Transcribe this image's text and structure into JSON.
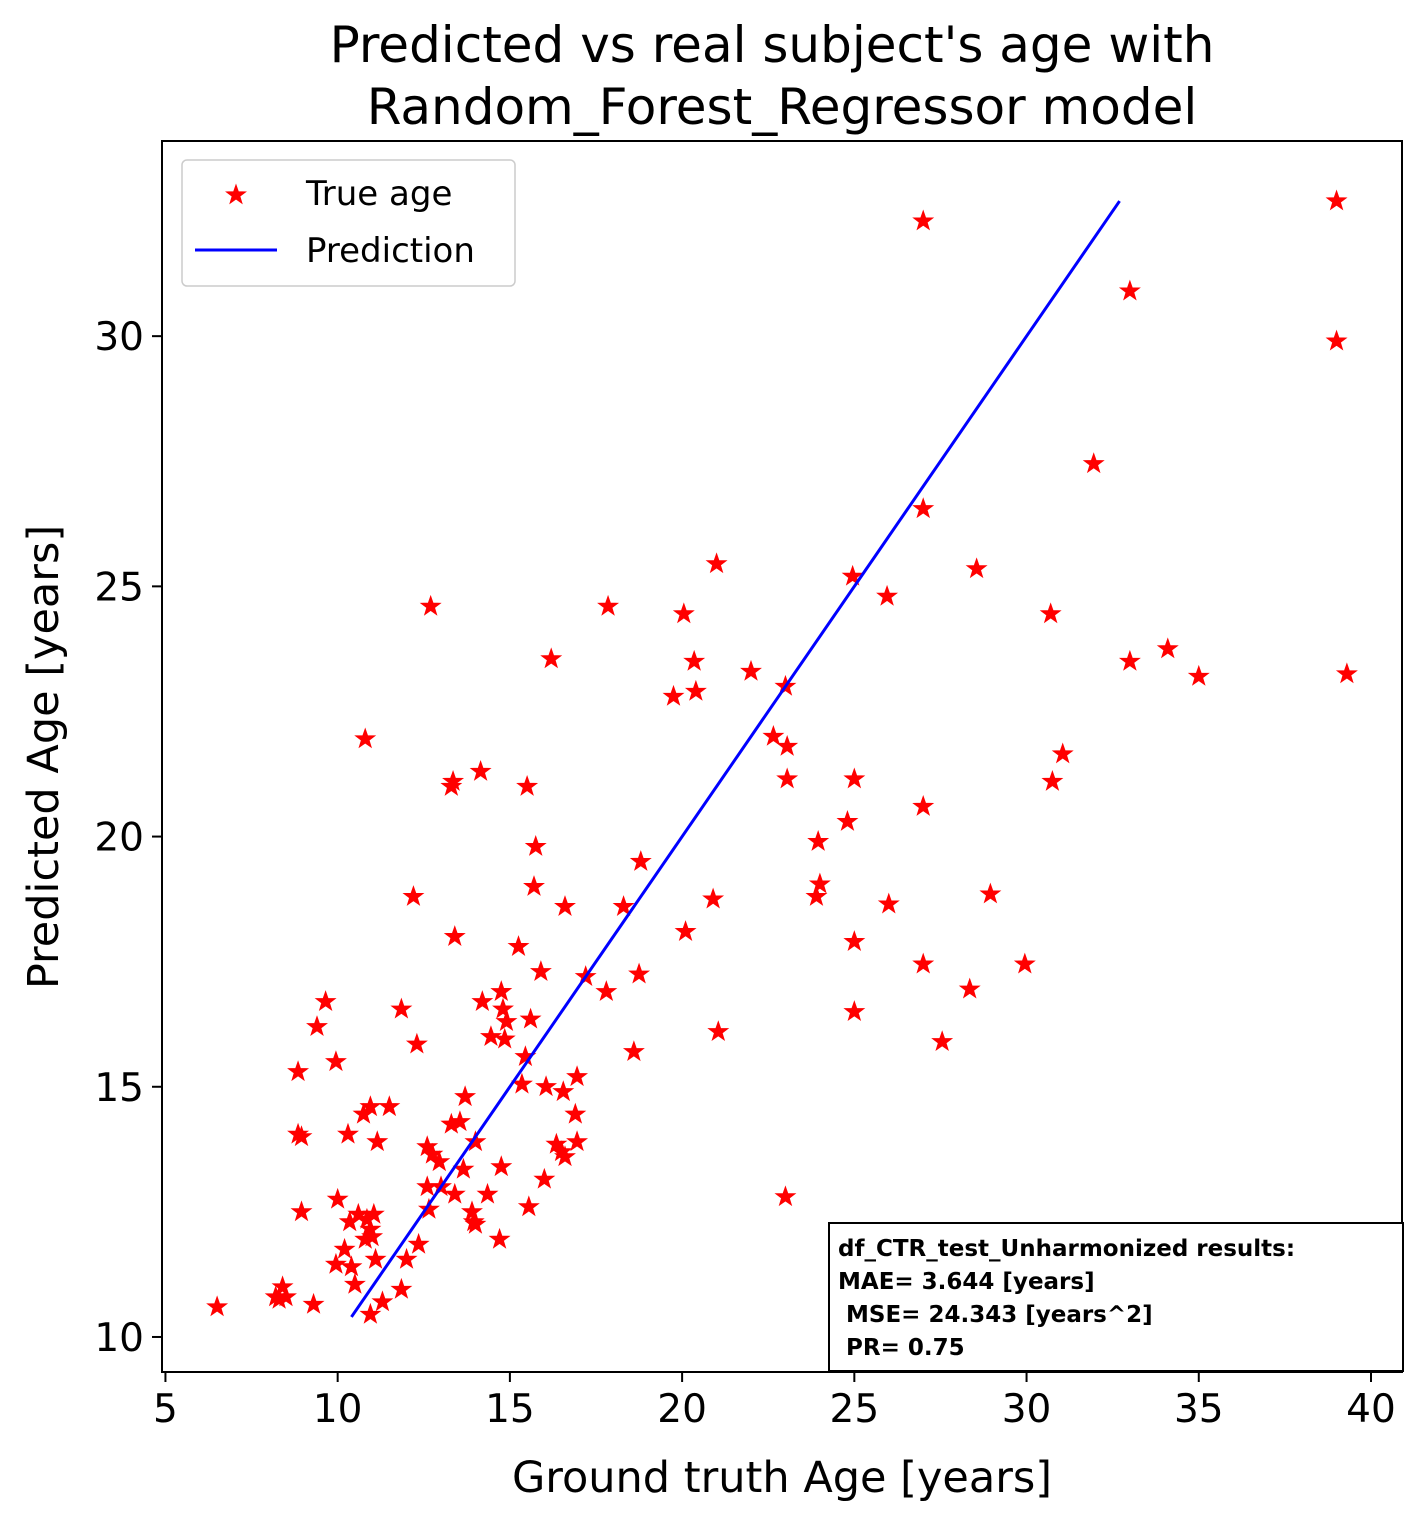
{
  "chart_data": {
    "type": "scatter",
    "title": [
      "Predicted vs real subject's age with",
      "Random_Forest_Regressor model"
    ],
    "xlabel": "Ground truth Age [years]",
    "ylabel": "Predicted Age [years]",
    "xlim": [
      4.9,
      40.9
    ],
    "ylim": [
      9.3,
      33.9
    ],
    "xticks": [
      5,
      10,
      15,
      20,
      25,
      30,
      35,
      40
    ],
    "yticks": [
      10,
      15,
      20,
      25,
      30
    ],
    "grid": false,
    "legend_position": "top-left",
    "series": [
      {
        "name": "True age",
        "kind": "scatter",
        "marker": "star",
        "color": "#ff0000",
        "points": [
          [
            6.5,
            10.6
          ],
          [
            8.2,
            10.8
          ],
          [
            8.4,
            11.0
          ],
          [
            8.5,
            10.8
          ],
          [
            8.3,
            10.75
          ],
          [
            9.3,
            10.65
          ],
          [
            8.85,
            15.3
          ],
          [
            8.85,
            14.05
          ],
          [
            8.95,
            14.0
          ],
          [
            8.95,
            12.5
          ],
          [
            9.4,
            16.2
          ],
          [
            9.65,
            16.7
          ],
          [
            9.95,
            15.5
          ],
          [
            10.0,
            12.75
          ],
          [
            9.95,
            11.45
          ],
          [
            10.2,
            11.75
          ],
          [
            10.3,
            14.05
          ],
          [
            10.35,
            12.3
          ],
          [
            10.4,
            11.4
          ],
          [
            10.5,
            11.05
          ],
          [
            10.6,
            12.45
          ],
          [
            10.75,
            14.45
          ],
          [
            10.85,
            12.35
          ],
          [
            10.8,
            11.95
          ],
          [
            10.8,
            21.95
          ],
          [
            10.95,
            14.6
          ],
          [
            10.95,
            12.15
          ],
          [
            11.0,
            12.0
          ],
          [
            11.05,
            12.45
          ],
          [
            11.1,
            11.55
          ],
          [
            11.15,
            13.9
          ],
          [
            10.95,
            10.45
          ],
          [
            11.3,
            10.7
          ],
          [
            11.5,
            14.6
          ],
          [
            11.85,
            10.95
          ],
          [
            11.85,
            16.55
          ],
          [
            12.0,
            11.55
          ],
          [
            12.2,
            18.8
          ],
          [
            12.3,
            15.85
          ],
          [
            12.35,
            11.85
          ],
          [
            12.6,
            13.8
          ],
          [
            12.6,
            13.0
          ],
          [
            12.65,
            12.55
          ],
          [
            12.75,
            13.65
          ],
          [
            12.7,
            24.6
          ],
          [
            12.95,
            13.5
          ],
          [
            13.0,
            13.0
          ],
          [
            13.3,
            14.25
          ],
          [
            13.3,
            21.0
          ],
          [
            13.35,
            21.1
          ],
          [
            13.4,
            12.85
          ],
          [
            13.4,
            18.0
          ],
          [
            13.55,
            14.3
          ],
          [
            13.65,
            13.35
          ],
          [
            13.7,
            14.8
          ],
          [
            13.9,
            12.5
          ],
          [
            13.95,
            12.3
          ],
          [
            14.0,
            13.9
          ],
          [
            14.0,
            12.25
          ],
          [
            14.2,
            16.7
          ],
          [
            14.15,
            21.3
          ],
          [
            14.35,
            12.85
          ],
          [
            14.45,
            16.0
          ],
          [
            14.7,
            11.95
          ],
          [
            14.75,
            13.4
          ],
          [
            14.75,
            16.9
          ],
          [
            14.8,
            16.55
          ],
          [
            14.85,
            15.95
          ],
          [
            14.9,
            16.3
          ],
          [
            15.25,
            17.8
          ],
          [
            15.35,
            15.05
          ],
          [
            15.45,
            15.6
          ],
          [
            15.5,
            21.0
          ],
          [
            15.55,
            12.6
          ],
          [
            15.6,
            16.35
          ],
          [
            15.7,
            19.0
          ],
          [
            15.75,
            19.8
          ],
          [
            15.9,
            17.3
          ],
          [
            16.0,
            13.15
          ],
          [
            16.05,
            15.0
          ],
          [
            16.2,
            23.55
          ],
          [
            16.35,
            13.85
          ],
          [
            16.5,
            13.7
          ],
          [
            16.55,
            14.9
          ],
          [
            16.6,
            13.6
          ],
          [
            16.6,
            18.6
          ],
          [
            16.9,
            14.45
          ],
          [
            16.95,
            15.2
          ],
          [
            16.95,
            13.9
          ],
          [
            17.2,
            17.2
          ],
          [
            17.8,
            16.9
          ],
          [
            17.85,
            24.6
          ],
          [
            18.3,
            18.6
          ],
          [
            18.6,
            15.7
          ],
          [
            18.75,
            17.25
          ],
          [
            18.8,
            19.5
          ],
          [
            19.75,
            22.8
          ],
          [
            20.05,
            24.45
          ],
          [
            20.1,
            18.1
          ],
          [
            20.35,
            23.5
          ],
          [
            20.4,
            22.9
          ],
          [
            20.9,
            18.75
          ],
          [
            21.0,
            25.45
          ],
          [
            21.05,
            16.1
          ],
          [
            22.0,
            23.3
          ],
          [
            22.65,
            22.0
          ],
          [
            23.0,
            23.0
          ],
          [
            23.05,
            21.8
          ],
          [
            23.05,
            21.15
          ],
          [
            23.0,
            12.8
          ],
          [
            23.9,
            18.8
          ],
          [
            23.95,
            19.9
          ],
          [
            24.0,
            19.05
          ],
          [
            24.8,
            20.3
          ],
          [
            24.95,
            25.2
          ],
          [
            25.0,
            21.15
          ],
          [
            25.0,
            17.9
          ],
          [
            25.0,
            16.5
          ],
          [
            25.95,
            24.8
          ],
          [
            26.0,
            18.65
          ],
          [
            27.0,
            32.3
          ],
          [
            27.0,
            26.55
          ],
          [
            27.0,
            20.6
          ],
          [
            27.0,
            17.45
          ],
          [
            27.55,
            15.9
          ],
          [
            28.35,
            16.95
          ],
          [
            28.55,
            25.35
          ],
          [
            28.95,
            18.85
          ],
          [
            29.95,
            17.45
          ],
          [
            30.7,
            24.45
          ],
          [
            30.75,
            21.1
          ],
          [
            31.05,
            21.65
          ],
          [
            31.95,
            27.45
          ],
          [
            33.0,
            30.9
          ],
          [
            33.0,
            23.5
          ],
          [
            34.1,
            23.75
          ],
          [
            35.0,
            23.2
          ],
          [
            39.0,
            32.7
          ],
          [
            39.0,
            29.9
          ],
          [
            39.3,
            23.25
          ]
        ]
      },
      {
        "name": "Prediction",
        "kind": "line",
        "color": "#0000ff",
        "points": [
          [
            10.4,
            10.4
          ],
          [
            32.7,
            32.7
          ]
        ]
      }
    ],
    "annotation": {
      "position": "bottom-right",
      "lines": [
        "df_CTR_test_Unharmonized results:",
        "MAE= 3.644 [years]",
        " MSE= 24.343 [years^2]",
        " PR= 0.75"
      ]
    }
  }
}
